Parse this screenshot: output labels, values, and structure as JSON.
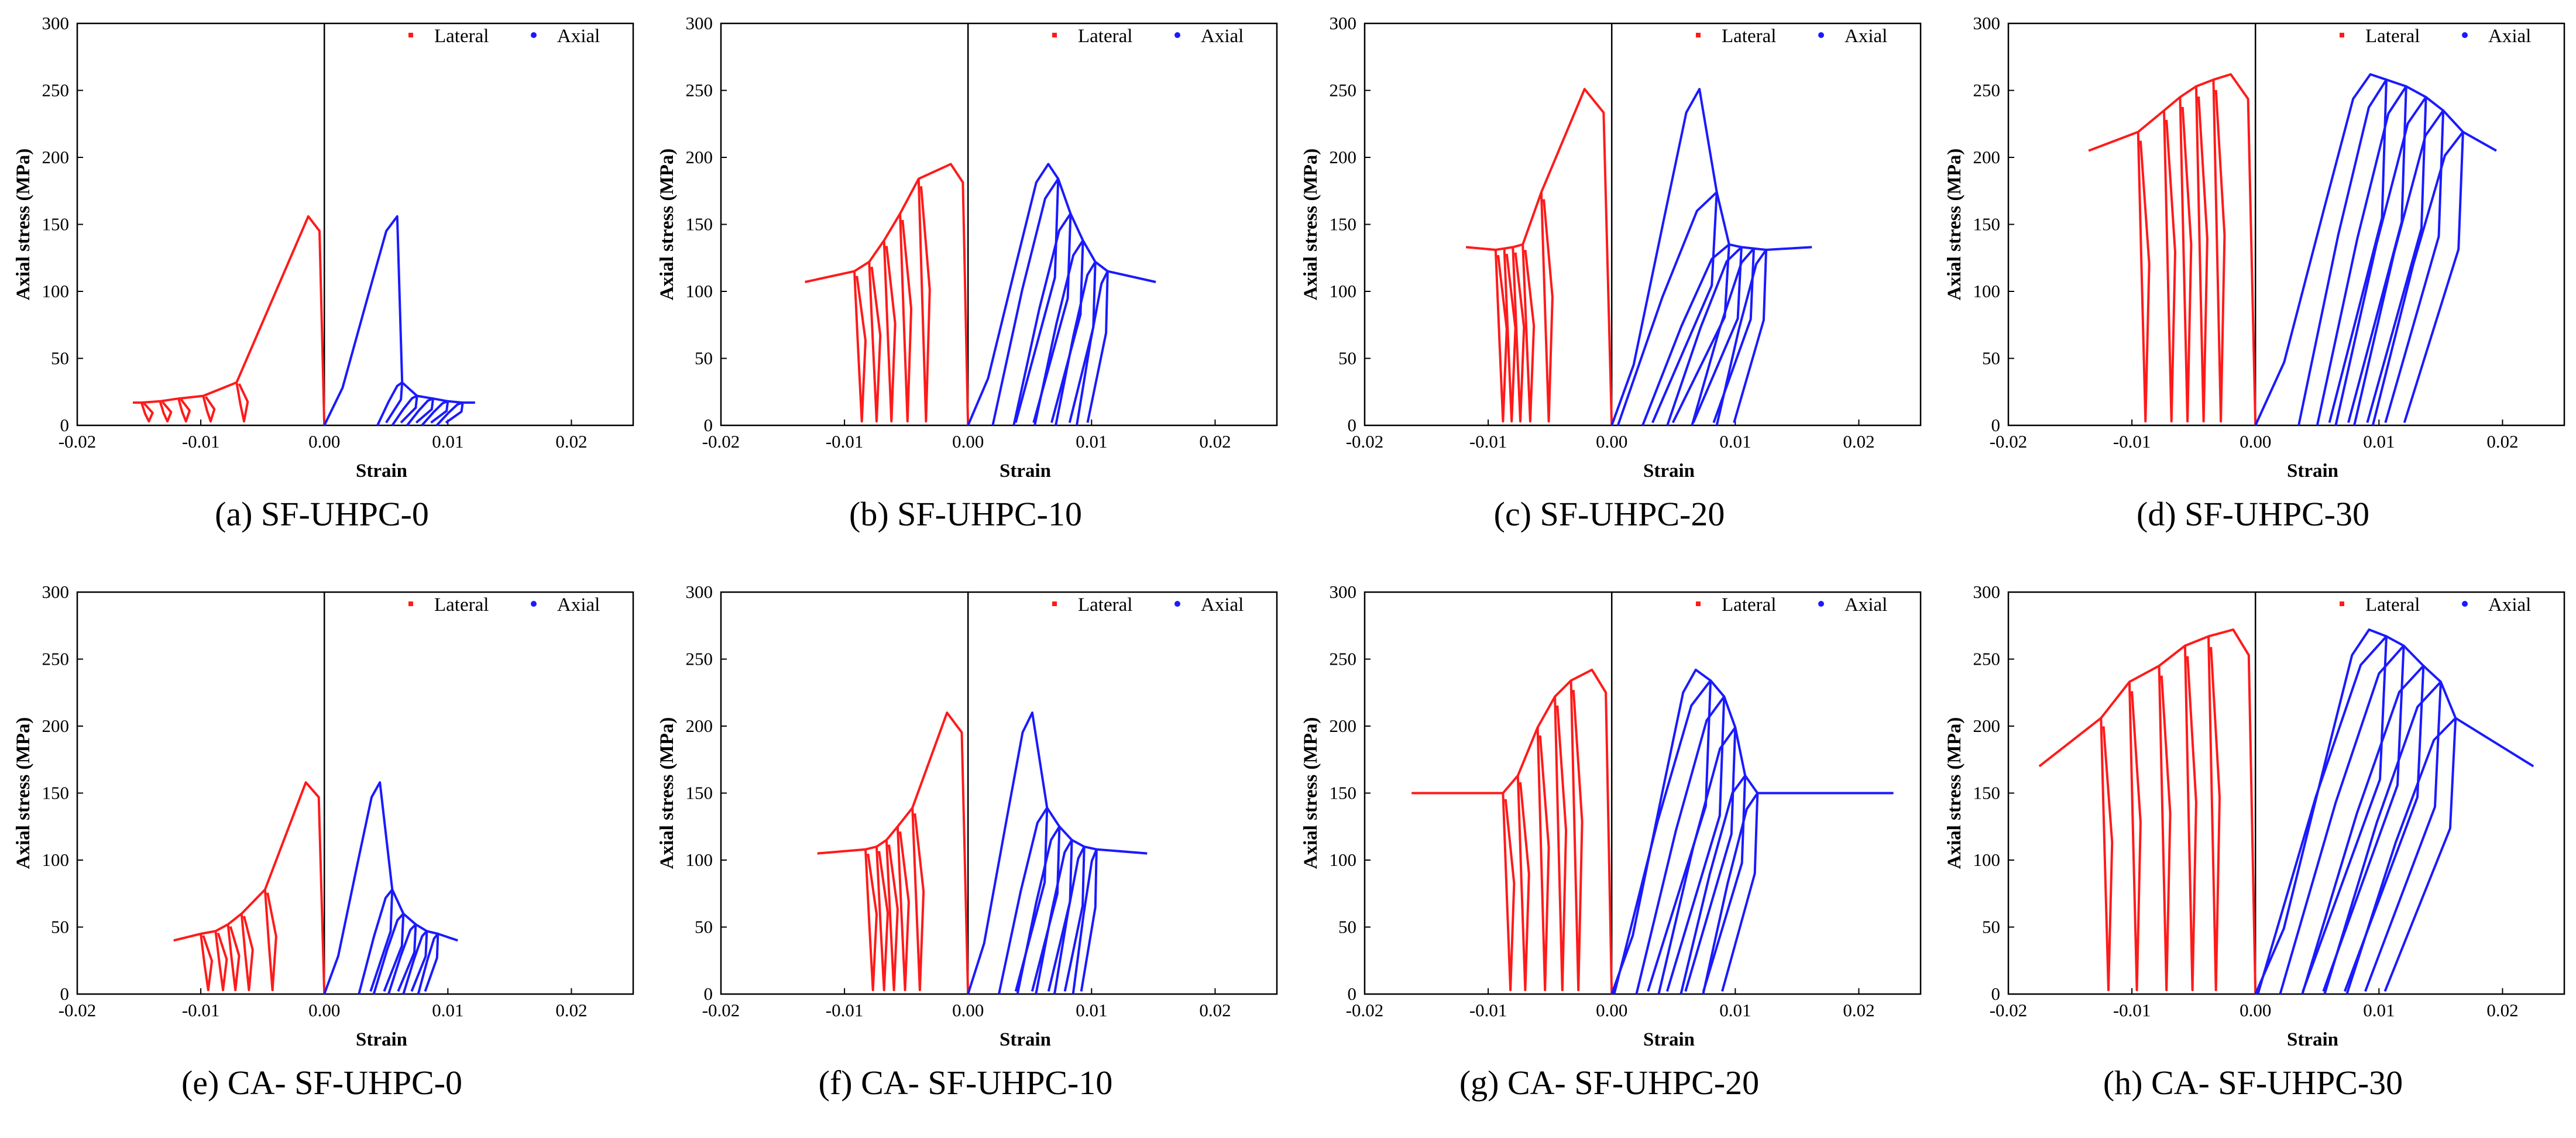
{
  "figure": {
    "colors": {
      "lateral": "#ff1a1a",
      "axial": "#1a1aff",
      "axis": "#000000"
    }
  },
  "chart_data": [
    {
      "type": "line",
      "caption": "(a) SF-UHPC-0",
      "xlabel": "Strain",
      "ylabel": "Axial stress (MPa)",
      "xlim": [
        -0.02,
        0.025
      ],
      "ylim": [
        0,
        300
      ],
      "xticks": [
        "-0.02",
        "-0.01",
        "0.00",
        "0.01",
        "0.02"
      ],
      "yticks": [
        "0",
        "50",
        "100",
        "150",
        "200",
        "250",
        "300"
      ],
      "legend": {
        "position": "top-right",
        "entries": [
          "Lateral",
          "Axial"
        ]
      },
      "peak": 156,
      "residual": 17,
      "cycle_peaks": [
        32,
        22,
        20,
        18,
        17
      ],
      "lateral_peak_strain": -0.0013,
      "lateral_cycle_strains": [
        -0.0071,
        -0.0098,
        -0.0118,
        -0.0133,
        -0.0148
      ],
      "axial_peak_strain": 0.0059,
      "axial_cycle_strains": [
        0.0063,
        0.0075,
        0.0088,
        0.01,
        0.0112
      ],
      "axial_cycle_start": 0.0043,
      "axial_cycle_start_step": 0.0012,
      "lateral_tail_strain": -0.0155,
      "axial_tail_strain": 0.0122,
      "series": [
        {
          "name": "Lateral",
          "color": "#ff1a1a"
        },
        {
          "name": "Axial",
          "color": "#1a1aff"
        }
      ]
    },
    {
      "type": "line",
      "caption": "(b) SF-UHPC-10",
      "xlabel": "Strain",
      "ylabel": "Axial stress (MPa)",
      "xlim": [
        -0.02,
        0.025
      ],
      "ylim": [
        0,
        300
      ],
      "xticks": [
        "-0.02",
        "-0.01",
        "0.00",
        "0.01",
        "0.02"
      ],
      "yticks": [
        "0",
        "50",
        "100",
        "150",
        "200",
        "250",
        "300"
      ],
      "legend": {
        "position": "top-right",
        "entries": [
          "Lateral",
          "Axial"
        ]
      },
      "peak": 195,
      "residual": 107,
      "cycle_peaks": [
        184,
        158,
        138,
        122,
        115
      ],
      "lateral_peak_strain": -0.0014,
      "lateral_cycle_strains": [
        -0.004,
        -0.0055,
        -0.0068,
        -0.008,
        -0.0092
      ],
      "axial_peak_strain": 0.0065,
      "axial_cycle_strains": [
        0.0073,
        0.0083,
        0.0093,
        0.0103,
        0.0113
      ],
      "axial_cycle_start": 0.002,
      "axial_cycle_start_step": 0.0017,
      "lateral_tail_strain": -0.0132,
      "axial_tail_strain": 0.0152,
      "series": [
        {
          "name": "Lateral",
          "color": "#ff1a1a"
        },
        {
          "name": "Axial",
          "color": "#1a1aff"
        }
      ]
    },
    {
      "type": "line",
      "caption": "(c) SF-UHPC-20",
      "xlabel": "Strain",
      "ylabel": "Axial stress (MPa)",
      "xlim": [
        -0.02,
        0.025
      ],
      "ylim": [
        0,
        300
      ],
      "xticks": [
        "-0.02",
        "-0.01",
        "0.00",
        "0.01",
        "0.02"
      ],
      "yticks": [
        "0",
        "50",
        "100",
        "150",
        "200",
        "250",
        "300"
      ],
      "legend": {
        "position": "top-right",
        "entries": [
          "Lateral",
          "Axial"
        ]
      },
      "peak": 251,
      "residual": 133,
      "cycle_peaks": [
        174,
        135,
        133,
        132,
        131
      ],
      "lateral_peak_strain": -0.0022,
      "lateral_cycle_strains": [
        -0.0057,
        -0.0072,
        -0.008,
        -0.0087,
        -0.0094
      ],
      "axial_peak_strain": 0.0071,
      "axial_cycle_strains": [
        0.0085,
        0.0095,
        0.0105,
        0.0115,
        0.0125
      ],
      "axial_cycle_start": 0.0005,
      "axial_cycle_start_step": 0.002,
      "lateral_tail_strain": -0.0118,
      "axial_tail_strain": 0.0162,
      "series": [
        {
          "name": "Lateral",
          "color": "#ff1a1a"
        },
        {
          "name": "Axial",
          "color": "#1a1aff"
        }
      ]
    },
    {
      "type": "line",
      "caption": "(d) SF-UHPC-30",
      "xlabel": "Strain",
      "ylabel": "Axial stress (MPa)",
      "xlim": [
        -0.02,
        0.025
      ],
      "ylim": [
        0,
        300
      ],
      "xticks": [
        "-0.02",
        "-0.01",
        "0.00",
        "0.01",
        "0.02"
      ],
      "yticks": [
        "0",
        "50",
        "100",
        "150",
        "200",
        "250",
        "300"
      ],
      "legend": {
        "position": "top-right",
        "entries": [
          "Lateral",
          "Axial"
        ]
      },
      "peak": 262,
      "residual": 205,
      "cycle_peaks": [
        258,
        253,
        245,
        235,
        219
      ],
      "lateral_peak_strain": -0.002,
      "lateral_cycle_strains": [
        -0.0034,
        -0.0048,
        -0.0061,
        -0.0074,
        -0.0095
      ],
      "axial_peak_strain": 0.0093,
      "axial_cycle_strains": [
        0.0106,
        0.0122,
        0.0138,
        0.0152,
        0.0168
      ],
      "axial_cycle_start": 0.0035,
      "axial_cycle_start_step": 0.0015,
      "lateral_tail_strain": -0.0135,
      "axial_tail_strain": 0.0195,
      "series": [
        {
          "name": "Lateral",
          "color": "#ff1a1a"
        },
        {
          "name": "Axial",
          "color": "#1a1aff"
        }
      ]
    },
    {
      "type": "line",
      "caption": "(e) CA- SF-UHPC-0",
      "xlabel": "Strain",
      "ylabel": "Axial stress (MPa)",
      "xlim": [
        -0.02,
        0.025
      ],
      "ylim": [
        0,
        300
      ],
      "xticks": [
        "-0.02",
        "-0.01",
        "0.00",
        "0.01",
        "0.02"
      ],
      "yticks": [
        "0",
        "50",
        "100",
        "150",
        "200",
        "250",
        "300"
      ],
      "legend": {
        "position": "top-right",
        "entries": [
          "Lateral",
          "Axial"
        ]
      },
      "peak": 158,
      "residual": 40,
      "cycle_peaks": [
        78,
        60,
        52,
        47,
        45
      ],
      "lateral_peak_strain": -0.0015,
      "lateral_cycle_strains": [
        -0.0048,
        -0.0067,
        -0.0078,
        -0.0088,
        -0.01
      ],
      "axial_peak_strain": 0.0045,
      "axial_cycle_strains": [
        0.0055,
        0.0064,
        0.0074,
        0.0083,
        0.0092
      ],
      "axial_cycle_start": 0.0028,
      "axial_cycle_start_step": 0.0012,
      "lateral_tail_strain": -0.0122,
      "axial_tail_strain": 0.0108,
      "series": [
        {
          "name": "Lateral",
          "color": "#ff1a1a"
        },
        {
          "name": "Axial",
          "color": "#1a1aff"
        }
      ]
    },
    {
      "type": "line",
      "caption": "(f) CA- SF-UHPC-10",
      "xlabel": "Strain",
      "ylabel": "Axial stress (MPa)",
      "xlim": [
        -0.02,
        0.025
      ],
      "ylim": [
        0,
        300
      ],
      "xticks": [
        "-0.02",
        "-0.01",
        "0.00",
        "0.01",
        "0.02"
      ],
      "yticks": [
        "0",
        "50",
        "100",
        "150",
        "200",
        "250",
        "300"
      ],
      "legend": {
        "position": "top-right",
        "entries": [
          "Lateral",
          "Axial"
        ]
      },
      "peak": 210,
      "residual": 105,
      "cycle_peaks": [
        139,
        125,
        115,
        110,
        108
      ],
      "lateral_peak_strain": -0.0017,
      "lateral_cycle_strains": [
        -0.0045,
        -0.0057,
        -0.0066,
        -0.0074,
        -0.0083
      ],
      "axial_peak_strain": 0.0052,
      "axial_cycle_strains": [
        0.0064,
        0.0074,
        0.0084,
        0.0094,
        0.0104
      ],
      "axial_cycle_start": 0.0025,
      "axial_cycle_start_step": 0.0015,
      "lateral_tail_strain": -0.0122,
      "axial_tail_strain": 0.0145,
      "series": [
        {
          "name": "Lateral",
          "color": "#ff1a1a"
        },
        {
          "name": "Axial",
          "color": "#1a1aff"
        }
      ]
    },
    {
      "type": "line",
      "caption": "(g) CA- SF-UHPC-20",
      "xlabel": "Strain",
      "ylabel": "Axial stress (MPa)",
      "xlim": [
        -0.02,
        0.025
      ],
      "ylim": [
        0,
        300
      ],
      "xticks": [
        "-0.02",
        "-0.01",
        "0.00",
        "0.01",
        "0.02"
      ],
      "yticks": [
        "0",
        "50",
        "100",
        "150",
        "200",
        "250",
        "300"
      ],
      "legend": {
        "position": "top-right",
        "entries": [
          "Lateral",
          "Axial"
        ]
      },
      "peak": 242,
      "residual": 150,
      "cycle_peaks": [
        234,
        222,
        199,
        163,
        150
      ],
      "lateral_peak_strain": -0.0016,
      "lateral_cycle_strains": [
        -0.0033,
        -0.0046,
        -0.006,
        -0.0076,
        -0.0088
      ],
      "axial_peak_strain": 0.0068,
      "axial_cycle_strains": [
        0.008,
        0.0091,
        0.01,
        0.0108,
        0.0118
      ],
      "axial_cycle_start": 0.0002,
      "axial_cycle_start_step": 0.0018,
      "lateral_tail_strain": -0.0162,
      "axial_tail_strain": 0.0228,
      "series": [
        {
          "name": "Lateral",
          "color": "#ff1a1a"
        },
        {
          "name": "Axial",
          "color": "#1a1aff"
        }
      ]
    },
    {
      "type": "line",
      "caption": "(h) CA- SF-UHPC-30",
      "xlabel": "Strain",
      "ylabel": "Axial stress (MPa)",
      "xlim": [
        -0.02,
        0.025
      ],
      "ylim": [
        0,
        300
      ],
      "xticks": [
        "-0.02",
        "-0.01",
        "0.00",
        "0.01",
        "0.02"
      ],
      "yticks": [
        "0",
        "50",
        "100",
        "150",
        "200",
        "250",
        "300"
      ],
      "legend": {
        "position": "top-right",
        "entries": [
          "Lateral",
          "Axial"
        ]
      },
      "peak": 272,
      "residual": 170,
      "cycle_peaks": [
        267,
        260,
        245,
        233,
        206
      ],
      "lateral_peak_strain": -0.0018,
      "lateral_cycle_strains": [
        -0.0038,
        -0.0057,
        -0.0078,
        -0.0102,
        -0.0125
      ],
      "axial_peak_strain": 0.0092,
      "axial_cycle_strains": [
        0.0106,
        0.012,
        0.0136,
        0.015,
        0.0162
      ],
      "axial_cycle_start": 0.0002,
      "axial_cycle_start_step": 0.0018,
      "lateral_tail_strain": -0.0175,
      "axial_tail_strain": 0.0225,
      "series": [
        {
          "name": "Lateral",
          "color": "#ff1a1a"
        },
        {
          "name": "Axial",
          "color": "#1a1aff"
        }
      ]
    }
  ]
}
